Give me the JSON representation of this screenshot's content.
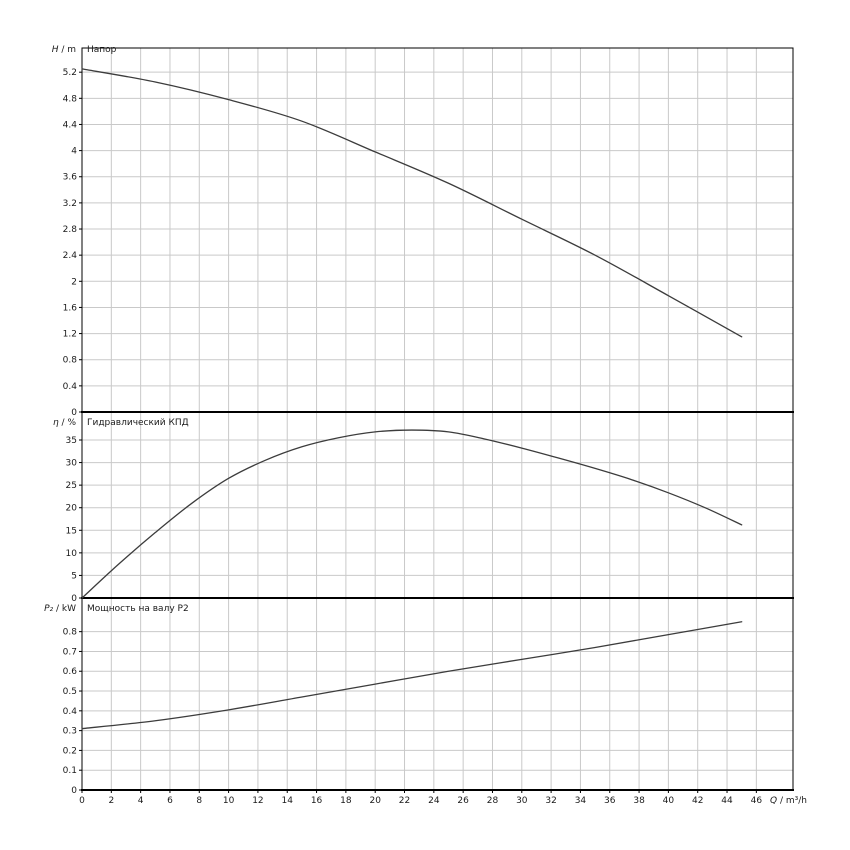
{
  "chart": {
    "background": "#ffffff",
    "style": {
      "curve_color": "#3c3c3c",
      "grid_color": "#c9c9c9",
      "frame_color": "#000000",
      "separator_color": "#000000",
      "text_color": "#1a1a1a"
    },
    "x_axis": {
      "symbol": "Q",
      "unit": "m³/h",
      "min": 0,
      "max": 48.5,
      "ticks": [
        0,
        2,
        4,
        6,
        8,
        10,
        12,
        14,
        16,
        18,
        20,
        22,
        24,
        26,
        28,
        30,
        32,
        34,
        36,
        38,
        40,
        42,
        44,
        46
      ]
    }
  },
  "chart_data": [
    {
      "type": "line",
      "title": "Напор",
      "ylabel_symbol": "H",
      "ylabel_unit": "m",
      "ylim": [
        0,
        5.57
      ],
      "yticks": [
        0,
        0.4,
        0.8,
        1.2,
        1.6,
        2,
        2.4,
        2.8,
        3.2,
        3.6,
        4,
        4.4,
        4.8,
        5.2
      ],
      "x": [
        0,
        5,
        10,
        15,
        20,
        25,
        30,
        35,
        40,
        45
      ],
      "y": [
        5.25,
        5.05,
        4.78,
        4.45,
        3.98,
        3.5,
        2.95,
        2.4,
        1.78,
        1.15
      ]
    },
    {
      "type": "line",
      "title": "Гидравлический КПД",
      "ylabel_symbol": "η",
      "ylabel_unit": "%",
      "ylim": [
        0,
        41.2
      ],
      "yticks": [
        0,
        5,
        10,
        15,
        20,
        25,
        30,
        35
      ],
      "x": [
        0,
        2.5,
        5,
        7.5,
        10,
        12.5,
        15,
        17.5,
        20,
        22.5,
        25,
        27.5,
        30,
        32.5,
        35,
        37.5,
        40,
        42.5,
        45
      ],
      "y": [
        0,
        7.5,
        14.5,
        21,
        26.5,
        30.5,
        33.5,
        35.5,
        36.8,
        37.2,
        36.8,
        35.2,
        33.2,
        31,
        28.7,
        26.2,
        23.3,
        20,
        16.2
      ]
    },
    {
      "type": "line",
      "title": "Мощность на валу P2",
      "ylabel_symbol": "P₂",
      "ylabel_unit": "kW",
      "ylim": [
        0,
        0.97
      ],
      "yticks": [
        0,
        0.1,
        0.2,
        0.3,
        0.4,
        0.5,
        0.6,
        0.7,
        0.8
      ],
      "x": [
        0,
        5,
        10,
        15,
        20,
        25,
        30,
        35,
        40,
        45
      ],
      "y": [
        0.31,
        0.35,
        0.405,
        0.47,
        0.535,
        0.6,
        0.66,
        0.72,
        0.785,
        0.85
      ]
    }
  ]
}
